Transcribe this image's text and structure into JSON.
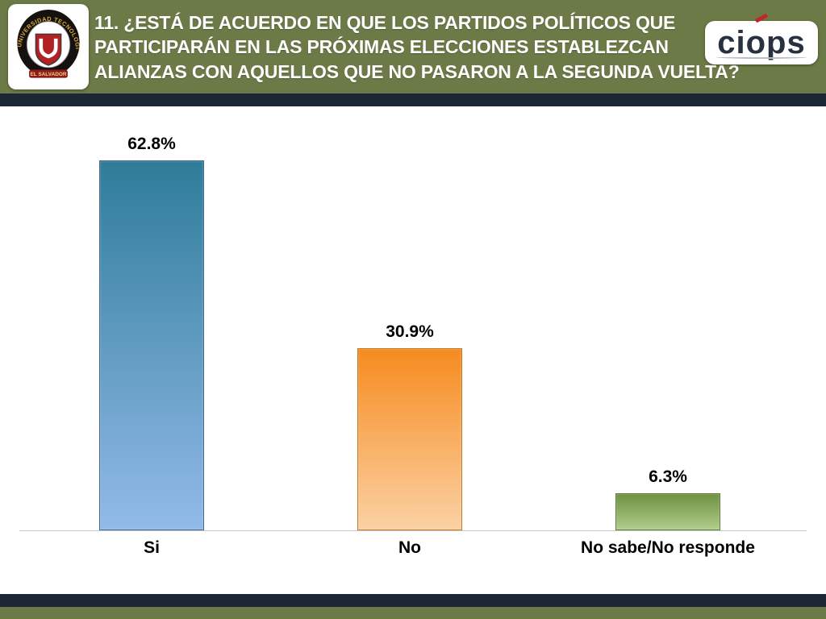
{
  "theme": {
    "header-bg": "#6B7A46",
    "band-dark": "#1B2735",
    "content-bg": "#FFFFFF",
    "title-color": "#FFFFFF",
    "label-color": "#000000",
    "baseline-color": "#C9C9C9"
  },
  "header": {
    "title_lines": [
      "11. ¿ESTÁ DE ACUERDO EN QUE LOS PARTIDOS POLÍTICOS QUE",
      "PARTICIPARÁN EN LAS PRÓXIMAS ELECCIONES ESTABLEZCAN",
      "ALIANZAS CON AQUELLOS QUE NO PASARON A LA SEGUNDA VUELTA?"
    ],
    "university_logo": {
      "arc_text": "UNIVERSIDAD TECNOLOGICA",
      "banner_text": "EL SALVADOR"
    },
    "ciops_logo_text": "ciops"
  },
  "chart_data": {
    "type": "bar",
    "title": "11. ¿ESTÁ DE ACUERDO EN QUE LOS PARTIDOS POLÍTICOS QUE PARTICIPARÁN EN LAS PRÓXIMAS ELECCIONES ESTABLEZCAN ALIANZAS CON AQUELLOS QUE NO PASARON A LA SEGUNDA VUELTA?",
    "categories": [
      "Si",
      "No",
      "No sabe/No responde"
    ],
    "values": [
      62.8,
      30.9,
      6.3
    ],
    "value_labels": [
      "62.8%",
      "30.9%",
      "6.3%"
    ],
    "xlabel": "",
    "ylabel": "",
    "ylim": [
      0,
      70
    ],
    "grid": false,
    "legend": false,
    "bar_colors": [
      {
        "top": "#2E7C99",
        "bottom": "#92BAE9",
        "border": "#41688F"
      },
      {
        "top": "#F68B1F",
        "bottom": "#FBD1A4",
        "border": "#C27A28"
      },
      {
        "top": "#6D9140",
        "bottom": "#B2CC8C",
        "border": "#5C7A36"
      }
    ]
  }
}
